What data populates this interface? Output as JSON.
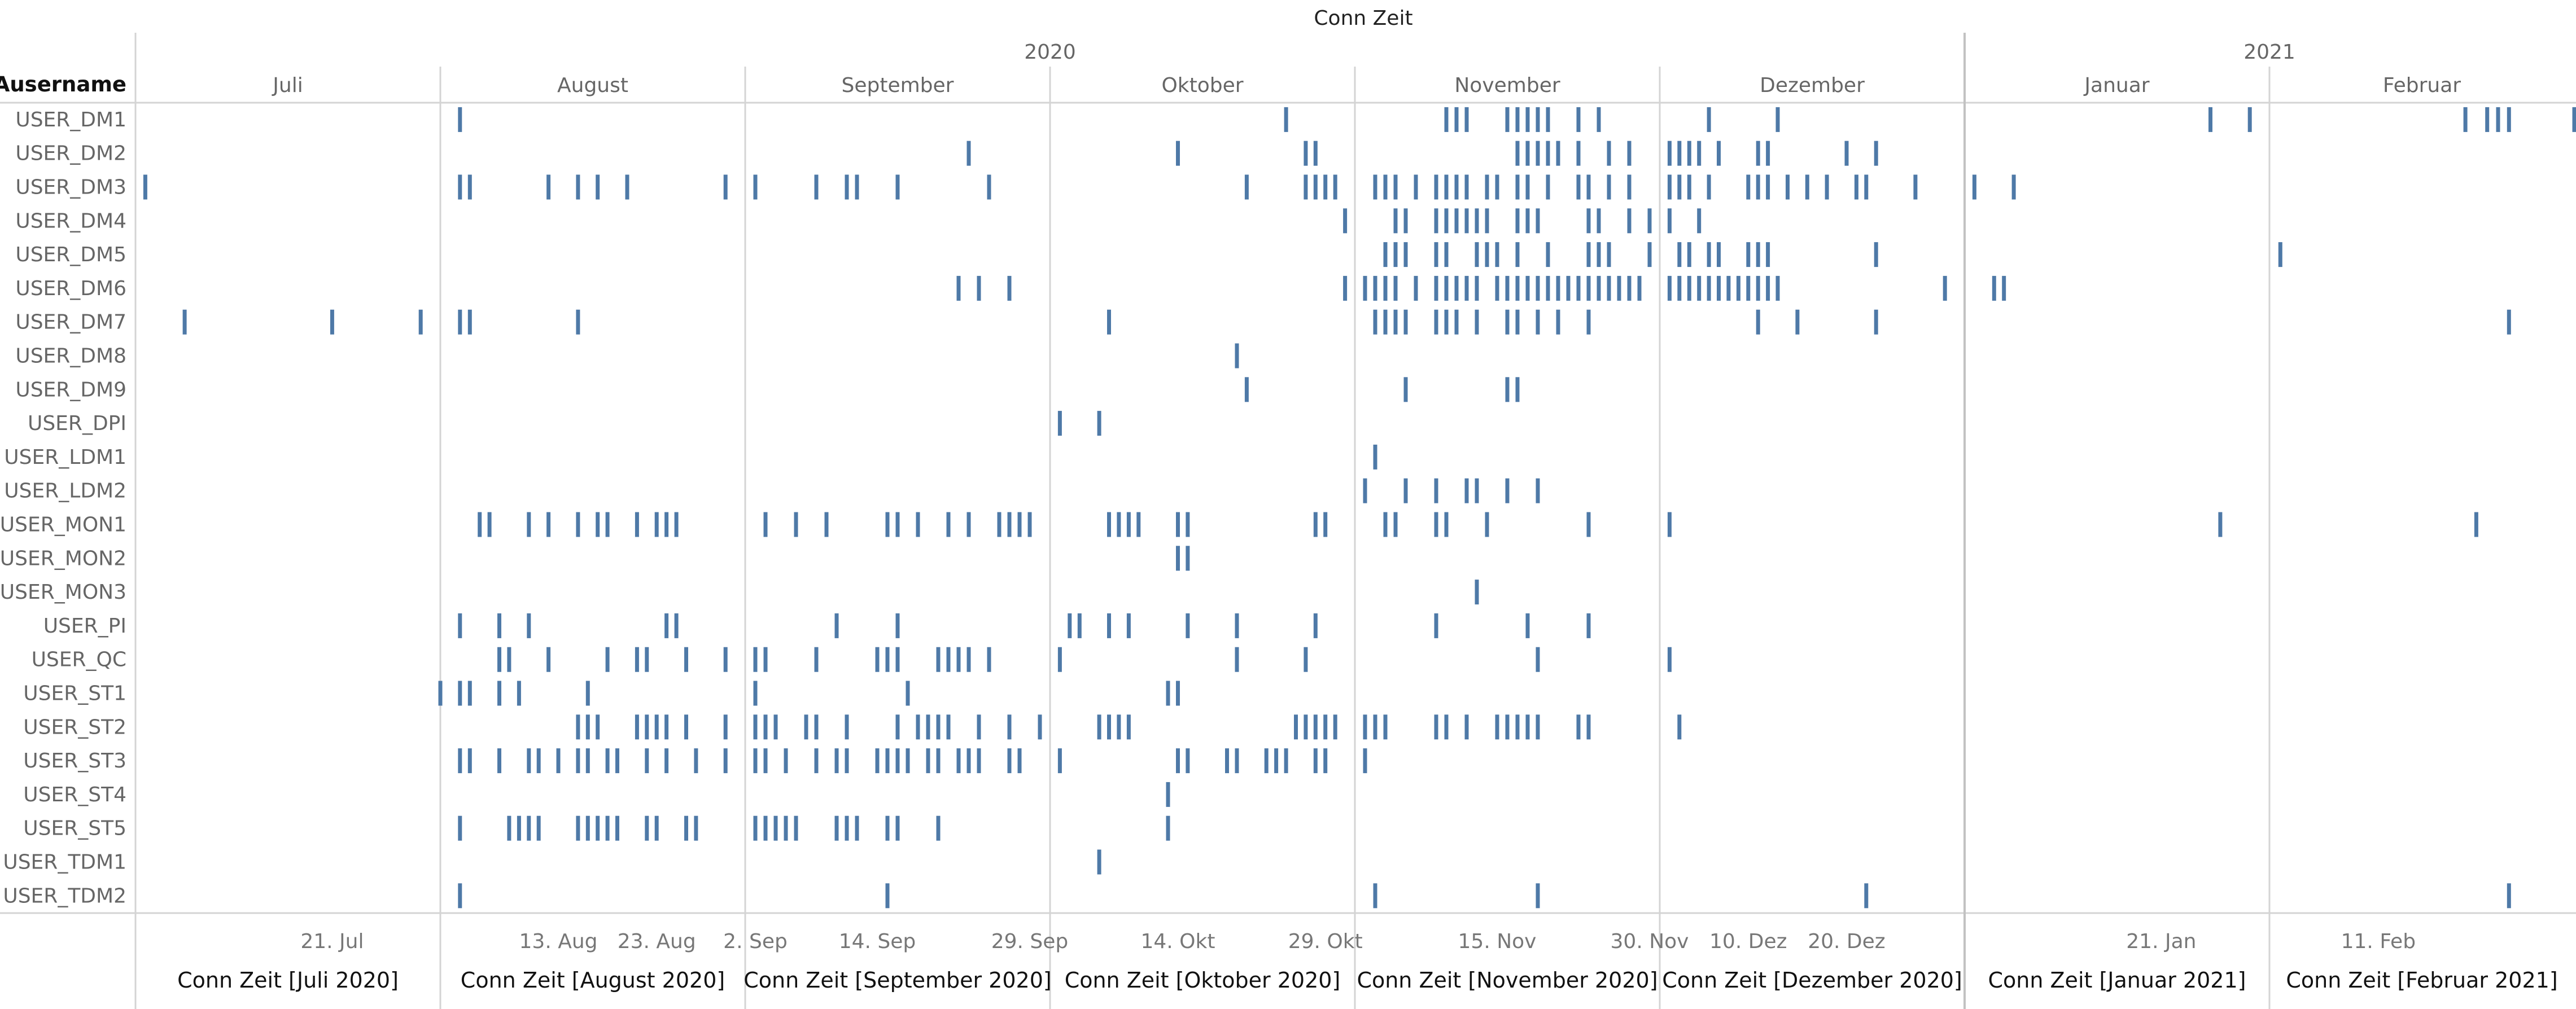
{
  "chart_data": {
    "type": "gantt",
    "title": "Conn Zeit",
    "row_header": "Ausername",
    "years": [
      {
        "label": "2020",
        "start": "2020-07-01",
        "end": "2021-01-01"
      },
      {
        "label": "2021",
        "start": "2021-01-01",
        "end": "2021-03-01"
      }
    ],
    "months": [
      {
        "label": "Juli",
        "start": "2020-07-01",
        "end": "2020-08-01",
        "panel": "Conn Zeit [Juli 2020]"
      },
      {
        "label": "August",
        "start": "2020-08-01",
        "end": "2020-09-01",
        "panel": "Conn Zeit [August 2020]"
      },
      {
        "label": "September",
        "start": "2020-09-01",
        "end": "2020-10-01",
        "panel": "Conn Zeit [September 2020]"
      },
      {
        "label": "Oktober",
        "start": "2020-10-01",
        "end": "2020-11-01",
        "panel": "Conn Zeit [Oktober 2020]"
      },
      {
        "label": "November",
        "start": "2020-11-01",
        "end": "2020-12-01",
        "panel": "Conn Zeit [November 2020]"
      },
      {
        "label": "Dezember",
        "start": "2020-12-01",
        "end": "2021-01-01",
        "panel": "Conn Zeit [Dezember 2020]"
      },
      {
        "label": "Januar",
        "start": "2021-01-01",
        "end": "2021-02-01",
        "panel": "Conn Zeit [Januar 2021]"
      },
      {
        "label": "Februar",
        "start": "2021-02-01",
        "end": "2021-03-01",
        "panel": "Conn Zeit [Februar 2021]"
      }
    ],
    "x_ticks": [
      {
        "label": "21. Jul",
        "date": "2020-07-21"
      },
      {
        "label": "13. Aug",
        "date": "2020-08-13"
      },
      {
        "label": "23. Aug",
        "date": "2020-08-23"
      },
      {
        "label": "2. Sep",
        "date": "2020-09-02"
      },
      {
        "label": "14. Sep",
        "date": "2020-09-14"
      },
      {
        "label": "29. Sep",
        "date": "2020-09-29"
      },
      {
        "label": "14. Okt",
        "date": "2020-10-14"
      },
      {
        "label": "29. Okt",
        "date": "2020-10-29"
      },
      {
        "label": "15. Nov",
        "date": "2020-11-15"
      },
      {
        "label": "30. Nov",
        "date": "2020-11-30"
      },
      {
        "label": "10. Dez",
        "date": "2020-12-10"
      },
      {
        "label": "20. Dez",
        "date": "2020-12-20"
      },
      {
        "label": "21. Jan",
        "date": "2021-01-21"
      },
      {
        "label": "11. Feb",
        "date": "2021-02-11"
      }
    ],
    "series_color": "#4e79a7",
    "grid": false,
    "users": [
      {
        "name": "USER_DM1",
        "dates": [
          "2020-08-03",
          "2020-10-25",
          "2020-11-10",
          "2020-11-11",
          "2020-11-12",
          "2020-11-16",
          "2020-11-17",
          "2020-11-18",
          "2020-11-19",
          "2020-11-20",
          "2020-11-23",
          "2020-11-25",
          "2020-12-06",
          "2020-12-13",
          "2021-01-26",
          "2021-01-30",
          "2021-02-19",
          "2021-02-21",
          "2021-02-22",
          "2021-02-23",
          "2021-03-01"
        ]
      },
      {
        "name": "USER_DM2",
        "dates": [
          "2020-09-23",
          "2020-10-14",
          "2020-10-27",
          "2020-10-28",
          "2020-11-17",
          "2020-11-18",
          "2020-11-19",
          "2020-11-20",
          "2020-11-21",
          "2020-11-23",
          "2020-11-26",
          "2020-11-28",
          "2020-12-02",
          "2020-12-03",
          "2020-12-04",
          "2020-12-05",
          "2020-12-07",
          "2020-12-11",
          "2020-12-12",
          "2020-12-20",
          "2020-12-23"
        ]
      },
      {
        "name": "USER_DM3",
        "dates": [
          "2020-07-02",
          "2020-08-03",
          "2020-08-04",
          "2020-08-12",
          "2020-08-15",
          "2020-08-17",
          "2020-08-20",
          "2020-08-30",
          "2020-09-02",
          "2020-09-08",
          "2020-09-11",
          "2020-09-12",
          "2020-09-16",
          "2020-09-25",
          "2020-10-21",
          "2020-10-27",
          "2020-10-28",
          "2020-10-29",
          "2020-10-30",
          "2020-11-03",
          "2020-11-04",
          "2020-11-05",
          "2020-11-07",
          "2020-11-09",
          "2020-11-10",
          "2020-11-11",
          "2020-11-12",
          "2020-11-14",
          "2020-11-15",
          "2020-11-17",
          "2020-11-18",
          "2020-11-20",
          "2020-11-23",
          "2020-11-24",
          "2020-11-26",
          "2020-11-28",
          "2020-12-02",
          "2020-12-03",
          "2020-12-04",
          "2020-12-06",
          "2020-12-10",
          "2020-12-11",
          "2020-12-12",
          "2020-12-14",
          "2020-12-16",
          "2020-12-18",
          "2020-12-21",
          "2020-12-22",
          "2020-12-27",
          "2021-01-02",
          "2021-01-06"
        ]
      },
      {
        "name": "USER_DM4",
        "dates": [
          "2020-10-31",
          "2020-11-05",
          "2020-11-06",
          "2020-11-09",
          "2020-11-10",
          "2020-11-11",
          "2020-11-12",
          "2020-11-13",
          "2020-11-14",
          "2020-11-17",
          "2020-11-18",
          "2020-11-19",
          "2020-11-24",
          "2020-11-25",
          "2020-11-28",
          "2020-11-30",
          "2020-12-02",
          "2020-12-05"
        ]
      },
      {
        "name": "USER_DM5",
        "dates": [
          "2020-11-04",
          "2020-11-05",
          "2020-11-06",
          "2020-11-09",
          "2020-11-10",
          "2020-11-13",
          "2020-11-14",
          "2020-11-15",
          "2020-11-17",
          "2020-11-20",
          "2020-11-24",
          "2020-11-25",
          "2020-11-26",
          "2020-11-30",
          "2020-12-03",
          "2020-12-04",
          "2020-12-06",
          "2020-12-07",
          "2020-12-10",
          "2020-12-11",
          "2020-12-12",
          "2020-12-23",
          "2021-02-02"
        ]
      },
      {
        "name": "USER_DM6",
        "dates": [
          "2020-09-22",
          "2020-09-24",
          "2020-09-27",
          "2020-10-31",
          "2020-11-02",
          "2020-11-03",
          "2020-11-04",
          "2020-11-05",
          "2020-11-07",
          "2020-11-09",
          "2020-11-10",
          "2020-11-11",
          "2020-11-12",
          "2020-11-13",
          "2020-11-15",
          "2020-11-16",
          "2020-11-17",
          "2020-11-18",
          "2020-11-19",
          "2020-11-20",
          "2020-11-21",
          "2020-11-22",
          "2020-11-23",
          "2020-11-24",
          "2020-11-25",
          "2020-11-26",
          "2020-11-27",
          "2020-11-28",
          "2020-11-29",
          "2020-12-02",
          "2020-12-03",
          "2020-12-04",
          "2020-12-05",
          "2020-12-06",
          "2020-12-07",
          "2020-12-08",
          "2020-12-09",
          "2020-12-10",
          "2020-12-11",
          "2020-12-12",
          "2020-12-13",
          "2020-12-30",
          "2021-01-04",
          "2021-01-05"
        ]
      },
      {
        "name": "USER_DM7",
        "dates": [
          "2020-07-06",
          "2020-07-21",
          "2020-07-30",
          "2020-08-03",
          "2020-08-04",
          "2020-08-15",
          "2020-10-07",
          "2020-11-03",
          "2020-11-04",
          "2020-11-05",
          "2020-11-06",
          "2020-11-09",
          "2020-11-10",
          "2020-11-11",
          "2020-11-13",
          "2020-11-16",
          "2020-11-17",
          "2020-11-19",
          "2020-11-21",
          "2020-11-24",
          "2020-12-11",
          "2020-12-15",
          "2020-12-23",
          "2021-02-23"
        ]
      },
      {
        "name": "USER_DM8",
        "dates": [
          "2020-10-20"
        ]
      },
      {
        "name": "USER_DM9",
        "dates": [
          "2020-10-21",
          "2020-11-06",
          "2020-11-16",
          "2020-11-17"
        ]
      },
      {
        "name": "USER_DPI",
        "dates": [
          "2020-10-02",
          "2020-10-06"
        ]
      },
      {
        "name": "USER_LDM1",
        "dates": [
          "2020-11-03"
        ]
      },
      {
        "name": "USER_LDM2",
        "dates": [
          "2020-11-02",
          "2020-11-06",
          "2020-11-09",
          "2020-11-12",
          "2020-11-13",
          "2020-11-16",
          "2020-11-19"
        ]
      },
      {
        "name": "USER_MON1",
        "dates": [
          "2020-08-05",
          "2020-08-06",
          "2020-08-10",
          "2020-08-12",
          "2020-08-15",
          "2020-08-17",
          "2020-08-18",
          "2020-08-21",
          "2020-08-23",
          "2020-08-24",
          "2020-08-25",
          "2020-09-03",
          "2020-09-06",
          "2020-09-09",
          "2020-09-15",
          "2020-09-16",
          "2020-09-18",
          "2020-09-21",
          "2020-09-23",
          "2020-09-26",
          "2020-09-27",
          "2020-09-28",
          "2020-09-29",
          "2020-10-07",
          "2020-10-08",
          "2020-10-09",
          "2020-10-10",
          "2020-10-14",
          "2020-10-15",
          "2020-10-28",
          "2020-10-29",
          "2020-11-04",
          "2020-11-05",
          "2020-11-09",
          "2020-11-10",
          "2020-11-14",
          "2020-11-24",
          "2020-12-02",
          "2021-01-27",
          "2021-02-20"
        ]
      },
      {
        "name": "USER_MON2",
        "dates": [
          "2020-10-14",
          "2020-10-15"
        ]
      },
      {
        "name": "USER_MON3",
        "dates": [
          "2020-11-13"
        ]
      },
      {
        "name": "USER_PI",
        "dates": [
          "2020-08-03",
          "2020-08-07",
          "2020-08-10",
          "2020-08-24",
          "2020-08-25",
          "2020-09-10",
          "2020-09-16",
          "2020-10-03",
          "2020-10-04",
          "2020-10-07",
          "2020-10-09",
          "2020-10-15",
          "2020-10-20",
          "2020-10-28",
          "2020-11-09",
          "2020-11-18",
          "2020-11-24"
        ]
      },
      {
        "name": "USER_QC",
        "dates": [
          "2020-08-07",
          "2020-08-08",
          "2020-08-12",
          "2020-08-18",
          "2020-08-21",
          "2020-08-22",
          "2020-08-26",
          "2020-08-30",
          "2020-09-02",
          "2020-09-03",
          "2020-09-08",
          "2020-09-14",
          "2020-09-15",
          "2020-09-16",
          "2020-09-20",
          "2020-09-21",
          "2020-09-22",
          "2020-09-23",
          "2020-09-25",
          "2020-10-02",
          "2020-10-20",
          "2020-10-27",
          "2020-11-19",
          "2020-12-02"
        ]
      },
      {
        "name": "USER_ST1",
        "dates": [
          "2020-08-01",
          "2020-08-03",
          "2020-08-04",
          "2020-08-07",
          "2020-08-09",
          "2020-08-16",
          "2020-09-02",
          "2020-09-17",
          "2020-10-13",
          "2020-10-14"
        ]
      },
      {
        "name": "USER_ST2",
        "dates": [
          "2020-08-15",
          "2020-08-16",
          "2020-08-17",
          "2020-08-21",
          "2020-08-22",
          "2020-08-23",
          "2020-08-24",
          "2020-08-26",
          "2020-08-30",
          "2020-09-02",
          "2020-09-03",
          "2020-09-04",
          "2020-09-07",
          "2020-09-08",
          "2020-09-11",
          "2020-09-16",
          "2020-09-18",
          "2020-09-19",
          "2020-09-20",
          "2020-09-21",
          "2020-09-24",
          "2020-09-27",
          "2020-09-30",
          "2020-10-06",
          "2020-10-07",
          "2020-10-08",
          "2020-10-09",
          "2020-10-26",
          "2020-10-27",
          "2020-10-28",
          "2020-10-29",
          "2020-10-30",
          "2020-11-02",
          "2020-11-03",
          "2020-11-04",
          "2020-11-09",
          "2020-11-10",
          "2020-11-12",
          "2020-11-15",
          "2020-11-16",
          "2020-11-17",
          "2020-11-18",
          "2020-11-19",
          "2020-11-23",
          "2020-11-24",
          "2020-12-03"
        ]
      },
      {
        "name": "USER_ST3",
        "dates": [
          "2020-08-03",
          "2020-08-04",
          "2020-08-07",
          "2020-08-10",
          "2020-08-11",
          "2020-08-13",
          "2020-08-15",
          "2020-08-16",
          "2020-08-18",
          "2020-08-19",
          "2020-08-22",
          "2020-08-24",
          "2020-08-27",
          "2020-08-30",
          "2020-09-02",
          "2020-09-03",
          "2020-09-05",
          "2020-09-08",
          "2020-09-10",
          "2020-09-11",
          "2020-09-14",
          "2020-09-15",
          "2020-09-16",
          "2020-09-17",
          "2020-09-19",
          "2020-09-20",
          "2020-09-22",
          "2020-09-23",
          "2020-09-24",
          "2020-09-27",
          "2020-09-28",
          "2020-10-02",
          "2020-10-14",
          "2020-10-15",
          "2020-10-19",
          "2020-10-20",
          "2020-10-23",
          "2020-10-24",
          "2020-10-25",
          "2020-10-28",
          "2020-10-29",
          "2020-11-02"
        ]
      },
      {
        "name": "USER_ST4",
        "dates": [
          "2020-10-13"
        ]
      },
      {
        "name": "USER_ST5",
        "dates": [
          "2020-08-03",
          "2020-08-08",
          "2020-08-09",
          "2020-08-10",
          "2020-08-11",
          "2020-08-15",
          "2020-08-16",
          "2020-08-17",
          "2020-08-18",
          "2020-08-19",
          "2020-08-22",
          "2020-08-23",
          "2020-08-26",
          "2020-08-27",
          "2020-09-02",
          "2020-09-03",
          "2020-09-04",
          "2020-09-05",
          "2020-09-06",
          "2020-09-10",
          "2020-09-11",
          "2020-09-12",
          "2020-09-15",
          "2020-09-16",
          "2020-09-20",
          "2020-10-13"
        ]
      },
      {
        "name": "USER_TDM1",
        "dates": [
          "2020-10-06"
        ]
      },
      {
        "name": "USER_TDM2",
        "dates": [
          "2020-08-03",
          "2020-09-15",
          "2020-11-03",
          "2020-11-19",
          "2020-12-22",
          "2021-02-23"
        ]
      }
    ]
  }
}
